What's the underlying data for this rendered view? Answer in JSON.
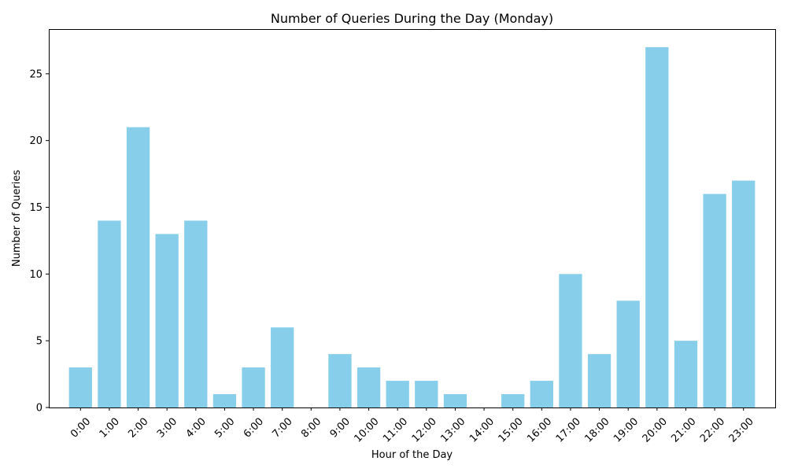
{
  "chart_data": {
    "type": "bar",
    "title": "Number of Queries During the Day (Monday)",
    "xlabel": "Hour of the Day",
    "ylabel": "Number of Queries",
    "categories": [
      "0:00",
      "1:00",
      "2:00",
      "3:00",
      "4:00",
      "5:00",
      "6:00",
      "7:00",
      "8:00",
      "9:00",
      "10:00",
      "11:00",
      "12:00",
      "13:00",
      "14:00",
      "15:00",
      "16:00",
      "17:00",
      "18:00",
      "19:00",
      "20:00",
      "21:00",
      "22:00",
      "23:00"
    ],
    "values": [
      3,
      14,
      21,
      13,
      14,
      1,
      3,
      6,
      0,
      4,
      3,
      2,
      2,
      1,
      0,
      1,
      2,
      10,
      4,
      8,
      27,
      5,
      16,
      17
    ],
    "ylim": [
      0,
      28.35
    ],
    "yticks": [
      0,
      5,
      10,
      15,
      20,
      25
    ],
    "bar_color": "#87ceeb",
    "xtick_rotation": "45 degrees",
    "grid": false,
    "legend": "none"
  }
}
